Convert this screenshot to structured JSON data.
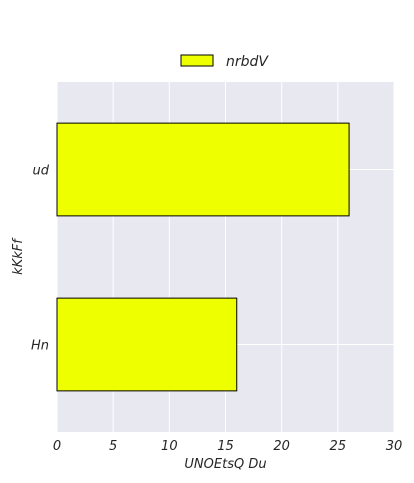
{
  "chart_data": {
    "type": "bar",
    "orientation": "horizontal",
    "categories": [
      "ud",
      "Hn"
    ],
    "series": [
      {
        "name": "nrbdV",
        "values": [
          26,
          16
        ],
        "color": "#eeff00"
      }
    ],
    "xlabel": "UNOEtsQ Du",
    "ylabel": "kKkFf",
    "xlim": [
      0,
      30
    ],
    "xticks": [
      "0",
      "5",
      "10",
      "15",
      "20",
      "25",
      "30"
    ],
    "grid": true,
    "legend_position": "top-center",
    "background_color": "#e8e8f0",
    "bar_edge_color": "#000000"
  }
}
